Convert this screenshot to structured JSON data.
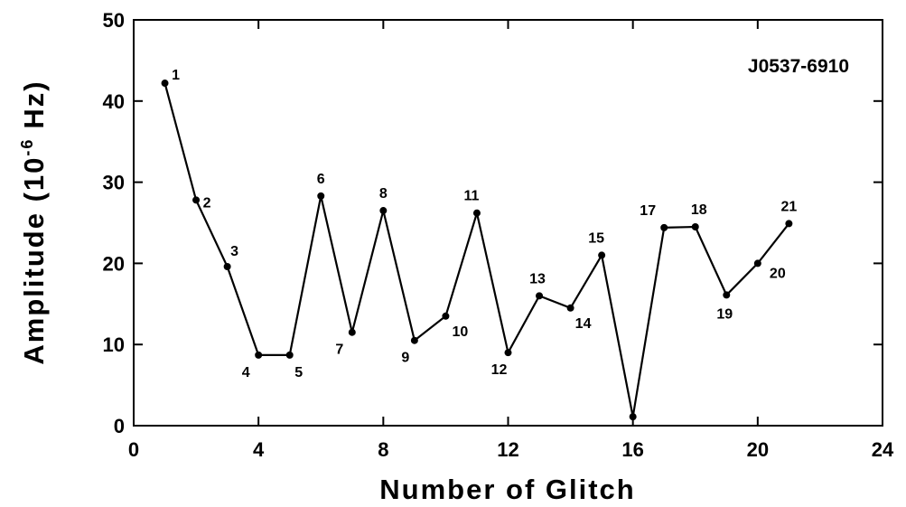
{
  "chart_data": {
    "type": "line",
    "xlabel": "Number of Glitch",
    "ylabel": [
      "Amplitude (10",
      "-6",
      "Hz)"
    ],
    "annotation": "J0537-6910",
    "x": [
      1,
      2,
      3,
      4,
      5,
      6,
      7,
      8,
      9,
      10,
      11,
      12,
      13,
      14,
      15,
      16,
      17,
      18,
      19,
      20,
      21
    ],
    "series": [
      {
        "color": "#000000",
        "values": [
          42.2,
          27.8,
          19.6,
          8.7,
          8.7,
          28.3,
          11.5,
          26.5,
          10.5,
          13.5,
          26.2,
          9.0,
          16.0,
          14.5,
          21.0,
          1.1,
          24.4,
          24.5,
          16.1,
          20.0,
          24.9
        ]
      }
    ],
    "xlim": [
      0,
      24
    ],
    "xticks": [
      0,
      4,
      8,
      12,
      16,
      20,
      24
    ],
    "ylim": [
      0,
      50
    ],
    "yticks": [
      0,
      10,
      20,
      30,
      40,
      50
    ]
  }
}
